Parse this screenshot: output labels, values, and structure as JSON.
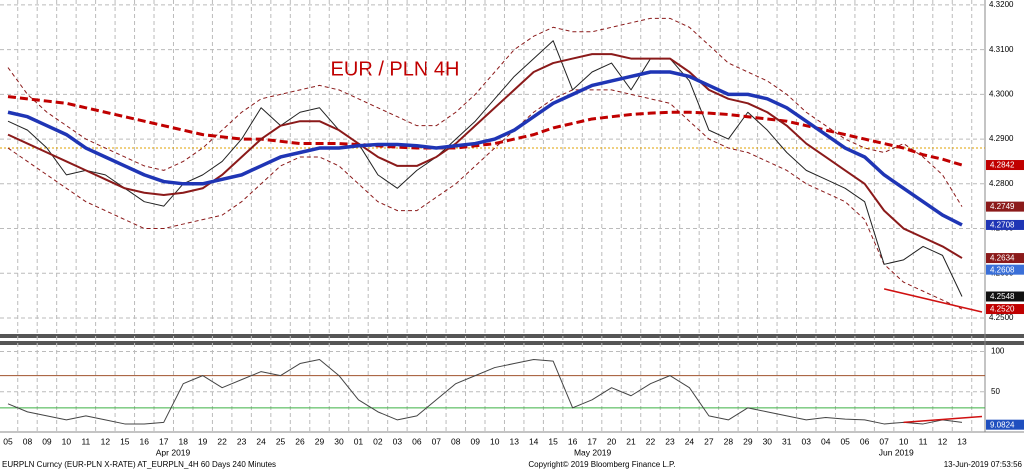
{
  "chart_data": {
    "type": "line",
    "title": "EUR / PLN 4H",
    "categories": [
      "05",
      "08",
      "09",
      "10",
      "11",
      "12",
      "15",
      "16",
      "17",
      "18",
      "19",
      "22",
      "23",
      "24",
      "25",
      "26",
      "29",
      "30",
      "01",
      "02",
      "03",
      "06",
      "07",
      "08",
      "09",
      "10",
      "13",
      "14",
      "15",
      "16",
      "17",
      "20",
      "21",
      "22",
      "23",
      "24",
      "27",
      "28",
      "29",
      "30",
      "31",
      "03",
      "04",
      "05",
      "06",
      "07",
      "10",
      "11",
      "12",
      "13"
    ],
    "months": [
      {
        "label": "Apr 2019",
        "from": 0,
        "to": 17
      },
      {
        "label": "May 2019",
        "from": 18,
        "to": 40
      },
      {
        "label": "Jun 2019",
        "from": 41,
        "to": 49
      }
    ],
    "ylim": [
      4.2491,
      4.3211
    ],
    "yticks": [
      {
        "value": 4.25,
        "label": "4.2500"
      },
      {
        "value": 4.26,
        "label": "4.2600"
      },
      {
        "value": 4.27,
        "label": "4.2700"
      },
      {
        "value": 4.28,
        "label": "4.2800"
      },
      {
        "value": 4.29,
        "label": "4.2900"
      },
      {
        "value": 4.3,
        "label": "4.3000"
      },
      {
        "value": 4.31,
        "label": "4.3100"
      },
      {
        "value": 4.32,
        "label": "4.3200"
      }
    ],
    "y2lim": [
      0,
      108
    ],
    "y2ticks": [
      50,
      100
    ],
    "grid": true,
    "series": [
      {
        "color": "#8b1a1a",
        "style": "dashed",
        "width": 1,
        "values": [
          4.306,
          4.3,
          4.296,
          4.293,
          4.29,
          4.288,
          4.286,
          4.284,
          4.283,
          4.285,
          4.288,
          4.292,
          4.296,
          4.299,
          4.3,
          4.301,
          4.302,
          4.301,
          4.299,
          4.297,
          4.295,
          4.293,
          4.293,
          4.296,
          4.3,
          4.305,
          4.31,
          4.313,
          4.315,
          4.314,
          4.314,
          4.315,
          4.316,
          4.317,
          4.317,
          4.315,
          4.311,
          4.307,
          4.305,
          4.303,
          4.3,
          4.296,
          4.293,
          4.29,
          4.288,
          4.287,
          4.289,
          4.286,
          4.282,
          4.2749
        ]
      },
      {
        "color": "#8b1a1a",
        "style": "dashed",
        "width": 1,
        "values": [
          4.288,
          4.285,
          4.282,
          4.279,
          4.276,
          4.274,
          4.272,
          4.27,
          4.27,
          4.271,
          4.272,
          4.273,
          4.276,
          4.28,
          4.284,
          4.286,
          4.286,
          4.284,
          4.28,
          4.276,
          4.274,
          4.274,
          4.277,
          4.28,
          4.284,
          4.288,
          4.292,
          4.296,
          4.299,
          4.301,
          4.301,
          4.301,
          4.3,
          4.299,
          4.298,
          4.294,
          4.29,
          4.288,
          4.287,
          4.285,
          4.283,
          4.28,
          4.278,
          4.276,
          4.272,
          4.262,
          4.258,
          4.256,
          4.254,
          4.252
        ]
      },
      {
        "color": "#222222",
        "style": "solid",
        "width": 1,
        "values": [
          4.294,
          4.292,
          4.288,
          4.282,
          4.283,
          4.282,
          4.279,
          4.276,
          4.275,
          4.28,
          4.282,
          4.285,
          4.29,
          4.297,
          4.293,
          4.296,
          4.297,
          4.292,
          4.289,
          4.282,
          4.279,
          4.283,
          4.286,
          4.29,
          4.294,
          4.299,
          4.304,
          4.308,
          4.312,
          4.301,
          4.305,
          4.307,
          4.301,
          4.308,
          4.308,
          4.303,
          4.292,
          4.29,
          4.296,
          4.292,
          4.287,
          4.283,
          4.281,
          4.279,
          4.276,
          4.262,
          4.263,
          4.266,
          4.264,
          4.2548
        ]
      },
      {
        "color": "#c00000",
        "style": "dashed",
        "width": 3,
        "values": [
          4.2995,
          4.299,
          4.2985,
          4.298,
          4.297,
          4.296,
          4.295,
          4.294,
          4.293,
          4.292,
          4.291,
          4.2905,
          4.29,
          4.29,
          4.2895,
          4.289,
          4.289,
          4.289,
          4.2888,
          4.2885,
          4.2882,
          4.288,
          4.288,
          4.288,
          4.2885,
          4.289,
          4.29,
          4.291,
          4.2925,
          4.2935,
          4.2945,
          4.295,
          4.2955,
          4.2958,
          4.296,
          4.296,
          4.2958,
          4.2955,
          4.295,
          4.2945,
          4.294,
          4.293,
          4.292,
          4.291,
          4.29,
          4.289,
          4.288,
          4.2865,
          4.2855,
          4.2842
        ]
      },
      {
        "color": "#8b1a1a",
        "style": "solid",
        "width": 2,
        "values": [
          4.291,
          4.289,
          4.287,
          4.285,
          4.283,
          4.281,
          4.279,
          4.278,
          4.2775,
          4.278,
          4.279,
          4.282,
          4.286,
          4.29,
          4.293,
          4.294,
          4.294,
          4.292,
          4.289,
          4.286,
          4.284,
          4.284,
          4.286,
          4.289,
          4.293,
          4.297,
          4.301,
          4.305,
          4.307,
          4.308,
          4.309,
          4.309,
          4.308,
          4.308,
          4.308,
          4.305,
          4.301,
          4.299,
          4.298,
          4.296,
          4.293,
          4.289,
          4.286,
          4.283,
          4.28,
          4.274,
          4.27,
          4.268,
          4.266,
          4.2634
        ]
      },
      {
        "color": "#1f35b5",
        "style": "solid",
        "width": 3.5,
        "values": [
          4.296,
          4.295,
          4.293,
          4.291,
          4.288,
          4.286,
          4.284,
          4.282,
          4.2805,
          4.28,
          4.28,
          4.281,
          4.282,
          4.284,
          4.286,
          4.287,
          4.288,
          4.288,
          4.2885,
          4.2888,
          4.2888,
          4.2885,
          4.288,
          4.2885,
          4.289,
          4.29,
          4.292,
          4.295,
          4.298,
          4.3,
          4.302,
          4.303,
          4.304,
          4.305,
          4.305,
          4.304,
          4.302,
          4.3,
          4.3,
          4.299,
          4.297,
          4.294,
          4.291,
          4.288,
          4.286,
          4.282,
          4.279,
          4.276,
          4.273,
          4.2708
        ]
      },
      {
        "color": "#444444",
        "style": "solid",
        "width": 1,
        "axis": "y2",
        "values": [
          35,
          25,
          20,
          15,
          20,
          15,
          10,
          10,
          12,
          60,
          70,
          55,
          65,
          75,
          70,
          85,
          90,
          70,
          40,
          25,
          15,
          20,
          40,
          60,
          70,
          80,
          85,
          90,
          88,
          30,
          40,
          55,
          45,
          60,
          70,
          55,
          20,
          15,
          30,
          25,
          20,
          15,
          18,
          16,
          15,
          10,
          12,
          10,
          15,
          12
        ]
      }
    ],
    "hlines": [
      {
        "value": 4.288,
        "color": "#e0a000"
      },
      {
        "value": 70,
        "axis": "y2",
        "color": "#a0522d"
      },
      {
        "value": 30,
        "axis": "y2",
        "color": "#3cb043"
      }
    ],
    "trendlines": [
      {
        "from": [
          45,
          4.2565
        ],
        "to": [
          49,
          4.252
        ],
        "color": "#d01010"
      },
      {
        "from": [
          46,
          12
        ],
        "to": [
          49,
          18
        ],
        "axis": "y2",
        "color": "#d01010"
      }
    ],
    "markers": [
      {
        "value": 4.2842,
        "color": "#c00000"
      },
      {
        "value": 4.2749,
        "color": "#8b1a1a"
      },
      {
        "value": 4.2708,
        "color": "#1f35b5"
      },
      {
        "value": 4.2634,
        "color": "#8b1a1a"
      },
      {
        "value": 4.2608,
        "color": "#3a6fd8"
      },
      {
        "value": 4.2548,
        "color": "#111111"
      },
      {
        "value": 4.252,
        "label": "4.2520",
        "color": "#c00000"
      },
      {
        "value": 9.0824,
        "axis": "y2",
        "color": "#1f4fbf"
      }
    ],
    "footer": {
      "left": "EURPLN Curncy (EUR-PLN X-RATE) AT_EURPLN_4H 60 Days 240 Minutes",
      "center": "Copyright© 2019 Bloomberg Finance L.P.",
      "right": "13-Jun-2019 07:53:56"
    }
  }
}
